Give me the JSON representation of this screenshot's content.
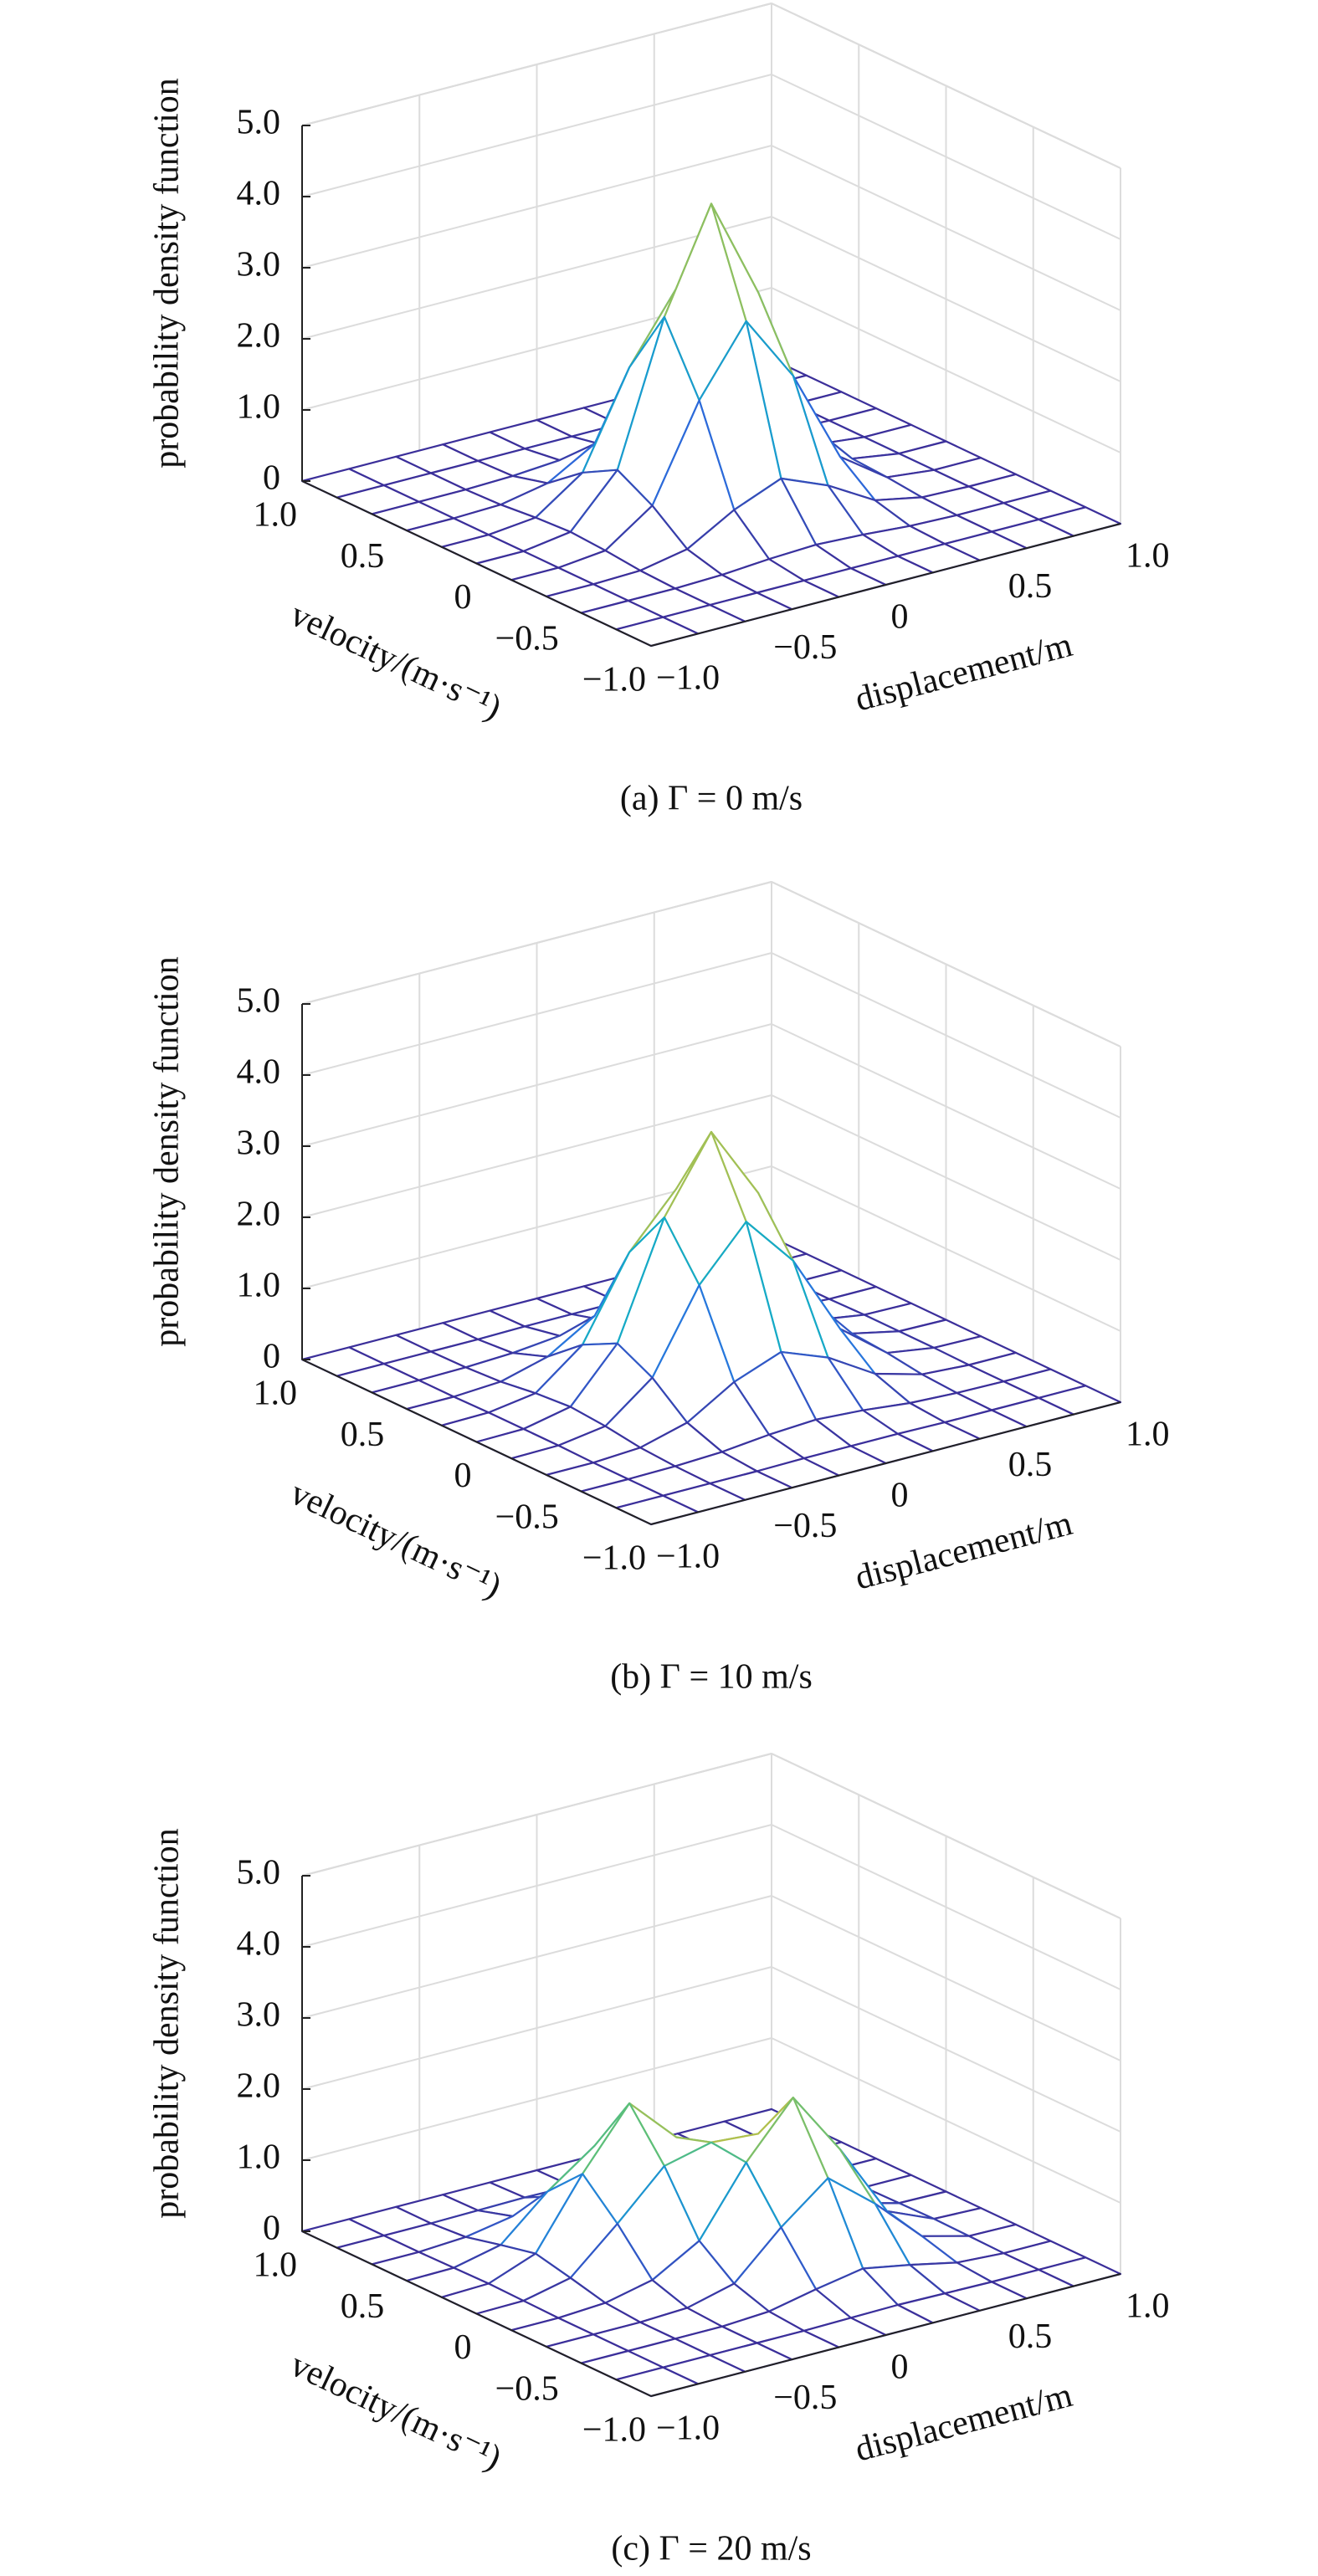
{
  "chart_data": [
    {
      "type": "surface",
      "caption": "(a) Γ = 0 m/s",
      "xlabel": "displacement/m",
      "ylabel": "velocity/(m·s⁻¹)",
      "zlabel": "probability density function",
      "x": [
        -1,
        -0.8,
        -0.6,
        -0.4,
        -0.2,
        0,
        0.2,
        0.4,
        0.6,
        0.8,
        1
      ],
      "y": [
        -1,
        -0.8,
        -0.6,
        -0.4,
        -0.2,
        0,
        0.2,
        0.4,
        0.6,
        0.8,
        1
      ],
      "z": [
        [
          0,
          0,
          0,
          0,
          0,
          0,
          0,
          0,
          0,
          0,
          0
        ],
        [
          0,
          0,
          0,
          0,
          0,
          0,
          0,
          0,
          0,
          0,
          0
        ],
        [
          0,
          0,
          0,
          0.02,
          0.07,
          0.1,
          0.07,
          0.02,
          0,
          0,
          0
        ],
        [
          0,
          0,
          0.02,
          0.15,
          0.53,
          0.8,
          0.53,
          0.15,
          0.02,
          0,
          0
        ],
        [
          0,
          0,
          0.07,
          0.53,
          1.84,
          2.78,
          1.84,
          0.53,
          0.07,
          0,
          0
        ],
        [
          0,
          0,
          0.1,
          0.8,
          2.78,
          4.2,
          2.78,
          0.8,
          0.1,
          0,
          0
        ],
        [
          0,
          0,
          0.07,
          0.53,
          1.84,
          2.78,
          1.84,
          0.53,
          0.07,
          0,
          0
        ],
        [
          0,
          0,
          0.02,
          0.15,
          0.53,
          0.8,
          0.53,
          0.15,
          0.02,
          0,
          0
        ],
        [
          0,
          0,
          0,
          0.02,
          0.07,
          0.1,
          0.07,
          0.02,
          0,
          0,
          0
        ],
        [
          0,
          0,
          0,
          0,
          0,
          0,
          0,
          0,
          0,
          0,
          0
        ],
        [
          0,
          0,
          0,
          0,
          0,
          0,
          0,
          0,
          0,
          0,
          0
        ]
      ],
      "xlim": [
        -1,
        1
      ],
      "ylim": [
        -1,
        1
      ],
      "zlim": [
        0,
        5
      ],
      "xticks": [
        {
          "value": -1,
          "label": "−1.0"
        },
        {
          "value": -0.5,
          "label": "−0.5"
        },
        0,
        {
          "value": 0.5,
          "label": "0.5"
        },
        {
          "value": 1,
          "label": "1.0"
        }
      ],
      "yticks": [
        {
          "value": -1,
          "label": "−1.0"
        },
        {
          "value": -0.5,
          "label": "−0.5"
        },
        0,
        {
          "value": 0.5,
          "label": "0.5"
        },
        {
          "value": 1,
          "label": "1.0"
        }
      ],
      "zticks": [
        0,
        {
          "value": 1,
          "label": "1.0"
        },
        {
          "value": 2,
          "label": "2.0"
        },
        {
          "value": 3,
          "label": "3.0"
        },
        {
          "value": 4,
          "label": "4.0"
        },
        {
          "value": 5,
          "label": "5.0"
        }
      ],
      "grid": true,
      "colormap": [
        "#3b2f9a",
        "#2c6fe0",
        "#13a9c9",
        "#5cbf7a",
        "#c9c040",
        "#f7d21a"
      ]
    },
    {
      "type": "surface",
      "caption": "(b) Γ = 10 m/s",
      "xlabel": "displacement/m",
      "ylabel": "velocity/(m·s⁻¹)",
      "zlabel": "probability density function",
      "x": [
        -1,
        -0.8,
        -0.6,
        -0.4,
        -0.2,
        0,
        0.2,
        0.4,
        0.6,
        0.8,
        1
      ],
      "y": [
        -1,
        -0.8,
        -0.6,
        -0.4,
        -0.2,
        0,
        0.2,
        0.4,
        0.6,
        0.8,
        1
      ],
      "z": [
        [
          0,
          0,
          0,
          0,
          0,
          0,
          0,
          0,
          0,
          0,
          0
        ],
        [
          0,
          0,
          0,
          0,
          0.01,
          0.01,
          0.01,
          0,
          0,
          0,
          0
        ],
        [
          0,
          0,
          0.01,
          0.04,
          0.11,
          0.15,
          0.11,
          0.04,
          0.01,
          0,
          0
        ],
        [
          0,
          0,
          0.04,
          0.22,
          0.62,
          0.87,
          0.62,
          0.22,
          0.04,
          0,
          0
        ],
        [
          0,
          0.01,
          0.11,
          0.62,
          1.75,
          2.47,
          1.75,
          0.62,
          0.11,
          0.01,
          0
        ],
        [
          0,
          0.01,
          0.15,
          0.87,
          2.47,
          3.5,
          2.47,
          0.87,
          0.15,
          0.01,
          0
        ],
        [
          0,
          0.01,
          0.11,
          0.62,
          1.75,
          2.47,
          1.75,
          0.62,
          0.11,
          0.01,
          0
        ],
        [
          0,
          0,
          0.04,
          0.22,
          0.62,
          0.87,
          0.62,
          0.22,
          0.04,
          0,
          0
        ],
        [
          0,
          0,
          0.01,
          0.04,
          0.11,
          0.15,
          0.11,
          0.04,
          0.01,
          0,
          0
        ],
        [
          0,
          0,
          0,
          0,
          0.01,
          0.01,
          0.01,
          0,
          0,
          0,
          0
        ],
        [
          0,
          0,
          0,
          0,
          0,
          0,
          0,
          0,
          0,
          0,
          0
        ]
      ],
      "xlim": [
        -1,
        1
      ],
      "ylim": [
        -1,
        1
      ],
      "zlim": [
        0,
        5
      ],
      "xticks": [
        {
          "value": -1,
          "label": "−1.0"
        },
        {
          "value": -0.5,
          "label": "−0.5"
        },
        0,
        {
          "value": 0.5,
          "label": "0.5"
        },
        {
          "value": 1,
          "label": "1.0"
        }
      ],
      "yticks": [
        {
          "value": -1,
          "label": "−1.0"
        },
        {
          "value": -0.5,
          "label": "−0.5"
        },
        0,
        {
          "value": 0.5,
          "label": "0.5"
        },
        {
          "value": 1,
          "label": "1.0"
        }
      ],
      "zticks": [
        0,
        {
          "value": 1,
          "label": "1.0"
        },
        {
          "value": 2,
          "label": "2.0"
        },
        {
          "value": 3,
          "label": "3.0"
        },
        {
          "value": 4,
          "label": "4.0"
        },
        {
          "value": 5,
          "label": "5.0"
        }
      ],
      "grid": true,
      "colormap": [
        "#3b2f9a",
        "#2c6fe0",
        "#13a9c9",
        "#5cbf7a",
        "#c9c040",
        "#f7d21a"
      ]
    },
    {
      "type": "surface",
      "caption": "(c) Γ = 20 m/s",
      "xlabel": "displacement/m",
      "ylabel": "velocity/(m·s⁻¹)",
      "zlabel": "probability density function",
      "x": [
        -1,
        -0.8,
        -0.6,
        -0.4,
        -0.2,
        0,
        0.2,
        0.4,
        0.6,
        0.8,
        1
      ],
      "y": [
        -1,
        -0.8,
        -0.6,
        -0.4,
        -0.2,
        0,
        0.2,
        0.4,
        0.6,
        0.8,
        1
      ],
      "z": [
        [
          0,
          0,
          0,
          0,
          0,
          0,
          0,
          0,
          0,
          0,
          0
        ],
        [
          0,
          0,
          0,
          0,
          0,
          0.01,
          0.02,
          0.01,
          0,
          0,
          0
        ],
        [
          0,
          0,
          0,
          0,
          0.04,
          0.18,
          0.3,
          0.18,
          0.04,
          0,
          0
        ],
        [
          0,
          0,
          0,
          0.03,
          0.2,
          0.82,
          1.34,
          0.81,
          0.18,
          0.01,
          0
        ],
        [
          0,
          0,
          0.04,
          0.19,
          0.57,
          1.5,
          2.24,
          1.34,
          0.3,
          0.02,
          0
        ],
        [
          0,
          0.01,
          0.16,
          0.75,
          1.39,
          1.55,
          1.5,
          0.82,
          0.18,
          0.01,
          0
        ],
        [
          0,
          0.02,
          0.27,
          1.22,
          2.04,
          1.39,
          0.57,
          0.2,
          0.04,
          0,
          0
        ],
        [
          0,
          0.01,
          0.16,
          0.74,
          1.21,
          0.75,
          0.19,
          0.03,
          0,
          0,
          0
        ],
        [
          0,
          0,
          0.04,
          0.16,
          0.27,
          0.16,
          0.04,
          0,
          0,
          0,
          0
        ],
        [
          0,
          0,
          0,
          0.01,
          0.02,
          0.01,
          0,
          0,
          0,
          0,
          0
        ],
        [
          0,
          0,
          0,
          0,
          0,
          0,
          0,
          0,
          0,
          0,
          0
        ]
      ],
      "xlim": [
        -1,
        1
      ],
      "ylim": [
        -1,
        1
      ],
      "zlim": [
        0,
        5
      ],
      "xticks": [
        {
          "value": -1,
          "label": "−1.0"
        },
        {
          "value": -0.5,
          "label": "−0.5"
        },
        0,
        {
          "value": 0.5,
          "label": "0.5"
        },
        {
          "value": 1,
          "label": "1.0"
        }
      ],
      "yticks": [
        {
          "value": -1,
          "label": "−1.0"
        },
        {
          "value": -0.5,
          "label": "−0.5"
        },
        0,
        {
          "value": 0.5,
          "label": "0.5"
        },
        {
          "value": 1,
          "label": "1.0"
        }
      ],
      "zticks": [
        0,
        {
          "value": 1,
          "label": "1.0"
        },
        {
          "value": 2,
          "label": "2.0"
        },
        {
          "value": 3,
          "label": "3.0"
        },
        {
          "value": 4,
          "label": "4.0"
        },
        {
          "value": 5,
          "label": "5.0"
        }
      ],
      "grid": true,
      "colormap": [
        "#3b2f9a",
        "#2c6fe0",
        "#13a9c9",
        "#5cbf7a",
        "#c9c040",
        "#f7d21a"
      ]
    }
  ]
}
